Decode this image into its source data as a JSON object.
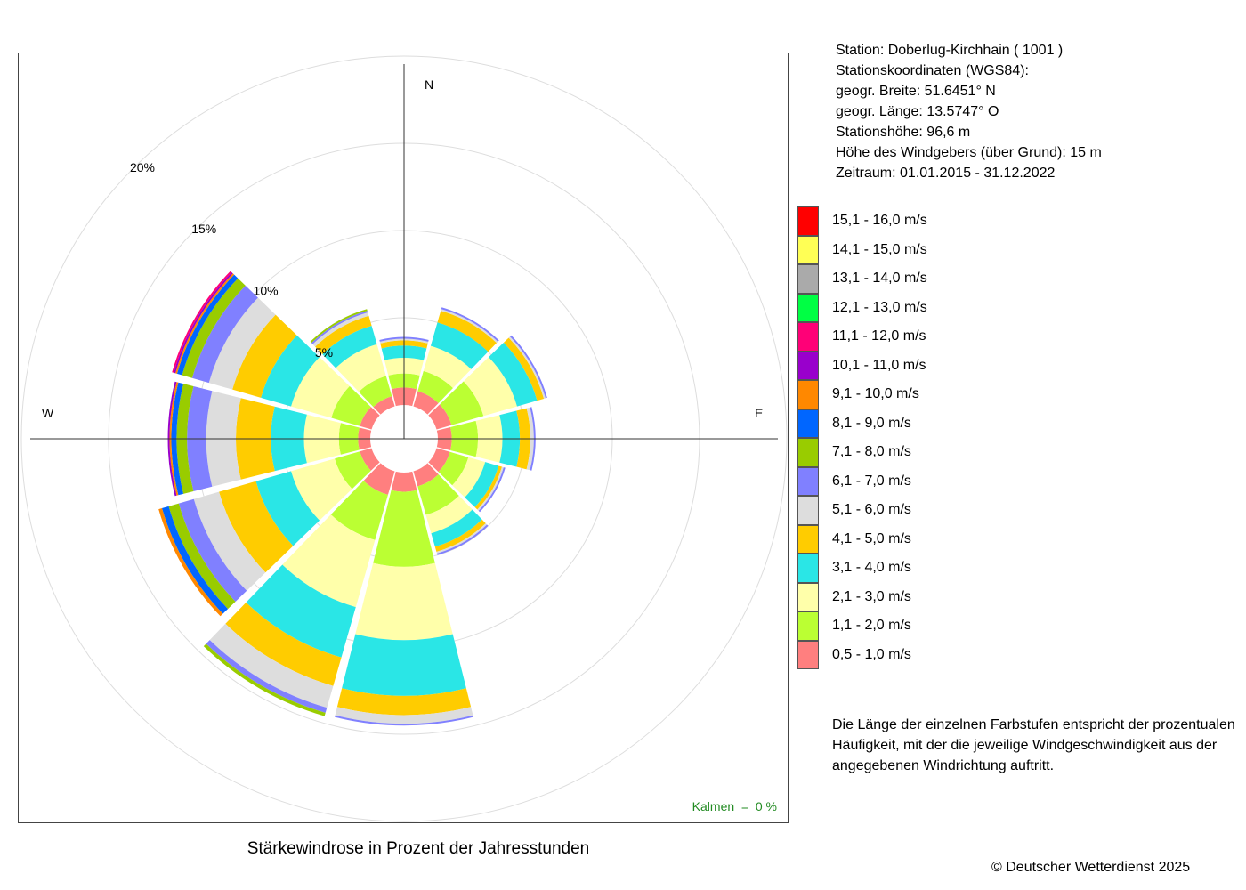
{
  "station_info": [
    "Station:  Doberlug-Kirchhain  ( 1001 )",
    "Stationskoordinaten (WGS84):",
    "geogr. Breite: 51.6451° N",
    "geogr. Länge: 13.5747° O",
    "Stationshöhe: 96,6 m",
    "Höhe des Windgebers (über Grund): 15 m",
    "Zeitraum: 01.01.2015 - 31.12.2022"
  ],
  "explanation": "Die Länge der einzelnen Farbstufen entspricht der prozentualen Häufigkeit, mit der die jeweilige Windgeschwindigkeit aus der angegebenen Windrichtung auftritt.",
  "copyright": "© Deutscher Wetterdienst  2025",
  "calms": "Kalmen  =  0 %",
  "chart_data": {
    "type": "wind-rose",
    "title": "Stärkewindrose in Prozent der Jahresstunden",
    "directions_deg": [
      0,
      30,
      60,
      90,
      120,
      150,
      180,
      210,
      240,
      270,
      300,
      330
    ],
    "compass_labels": {
      "N": "N",
      "E": "E",
      "W": "W"
    },
    "rings": [
      {
        "value": 5,
        "label": "5%"
      },
      {
        "value": 10,
        "label": "10%"
      },
      {
        "value": 15,
        "label": "15%"
      },
      {
        "value": 20,
        "label": "20%"
      }
    ],
    "rmax": 20,
    "calms_percent": 0,
    "classes": [
      {
        "label": "0,5 - 1,0 m/s",
        "color": "#FF7F7F"
      },
      {
        "label": "1,1 - 2,0 m/s",
        "color": "#BBFF33"
      },
      {
        "label": "2,1 - 3,0 m/s",
        "color": "#FFFFAA"
      },
      {
        "label": "3,1 - 4,0 m/s",
        "color": "#2AE6E6"
      },
      {
        "label": "4,1 - 5,0 m/s",
        "color": "#FFCC00"
      },
      {
        "label": "5,1 - 6,0 m/s",
        "color": "#DDDDDD"
      },
      {
        "label": "6,1 - 7,0 m/s",
        "color": "#8080FF"
      },
      {
        "label": "7,1 - 8,0 m/s",
        "color": "#99CC00"
      },
      {
        "label": "8,1 - 9,0 m/s",
        "color": "#0066FF"
      },
      {
        "label": "9,1 - 10,0 m/s",
        "color": "#FF8800"
      },
      {
        "label": "10,1 - 11,0 m/s",
        "color": "#9900CC"
      },
      {
        "label": "11,1 - 12,0 m/s",
        "color": "#FF0077"
      },
      {
        "label": "12,1 - 13,0 m/s",
        "color": "#00FF44"
      },
      {
        "label": "13,1 - 14,0 m/s",
        "color": "#AAAAAA"
      },
      {
        "label": "14,1 - 15,0 m/s",
        "color": "#FFFF55"
      },
      {
        "label": "15,1 - 16,0 m/s",
        "color": "#FF0000"
      }
    ],
    "legend_order": "descending",
    "series": [
      {
        "direction": 0,
        "values": [
          1.0,
          0.8,
          0.9,
          0.7,
          0.3,
          0.1,
          0.1
        ]
      },
      {
        "direction": 30,
        "values": [
          0.9,
          1.2,
          1.5,
          1.4,
          0.7,
          0.1,
          0.1
        ]
      },
      {
        "direction": 60,
        "values": [
          0.9,
          1.9,
          2.0,
          1.2,
          0.4,
          0.1,
          0.1
        ]
      },
      {
        "direction": 90,
        "values": [
          0.8,
          1.5,
          1.4,
          1.0,
          0.6,
          0.2,
          0.1
        ]
      },
      {
        "direction": 120,
        "values": [
          0.8,
          1.1,
          1.0,
          0.8,
          0.2,
          0.1,
          0.1
        ]
      },
      {
        "direction": 150,
        "values": [
          0.9,
          1.7,
          1.1,
          0.8,
          0.3,
          0.1,
          0.1
        ]
      },
      {
        "direction": 180,
        "values": [
          1.1,
          4.3,
          4.2,
          3.2,
          1.1,
          0.5,
          0.1
        ]
      },
      {
        "direction": 210,
        "values": [
          1.4,
          2.7,
          4.0,
          3.0,
          1.7,
          1.3,
          0.3,
          0.2
        ]
      },
      {
        "direction": 240,
        "values": [
          0.7,
          1.5,
          2.6,
          2.1,
          2.2,
          1.5,
          0.9,
          0.6,
          0.4,
          0.2
        ]
      },
      {
        "direction": 270,
        "values": [
          0.7,
          1.1,
          2.0,
          1.9,
          2.0,
          1.7,
          1.1,
          0.6,
          0.3,
          0.1,
          0.1
        ]
      },
      {
        "direction": 300,
        "values": [
          0.7,
          1.7,
          2.4,
          1.8,
          1.7,
          1.4,
          1.0,
          0.6,
          0.3,
          0.1,
          0.1,
          0.1
        ]
      },
      {
        "direction": 330,
        "values": [
          0.6,
          1.2,
          1.9,
          1.1,
          0.6,
          0.2,
          0.1,
          0.1
        ]
      }
    ]
  }
}
